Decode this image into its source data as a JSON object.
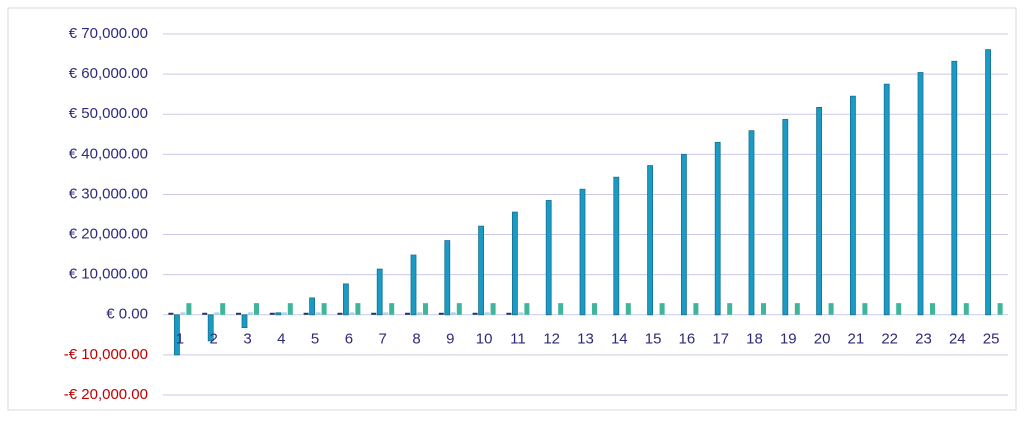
{
  "chart_data": {
    "type": "bar",
    "categories": [
      "1",
      "2",
      "3",
      "4",
      "5",
      "6",
      "7",
      "8",
      "9",
      "10",
      "11",
      "12",
      "13",
      "14",
      "15",
      "16",
      "17",
      "18",
      "19",
      "20",
      "21",
      "22",
      "23",
      "24",
      "25"
    ],
    "series": [
      {
        "color": "#1f3864",
        "values": [
          500,
          500,
          500,
          500,
          500,
          500,
          500,
          500,
          500,
          500,
          500,
          null,
          null,
          null,
          null,
          null,
          null,
          null,
          null,
          null,
          null,
          null,
          null,
          null,
          null
        ]
      },
      {
        "color": "#1a9bc6",
        "values": [
          -10000,
          -6500,
          -3200,
          500,
          4200,
          7700,
          11400,
          14900,
          18500,
          22100,
          25600,
          28500,
          31300,
          34300,
          37200,
          40000,
          43000,
          45900,
          48700,
          51700,
          54500,
          57500,
          60400,
          63200,
          66100
        ]
      },
      {
        "color": "#a9d4e4",
        "values": [
          600,
          600,
          600,
          600,
          600,
          600,
          600,
          600,
          600,
          600,
          600,
          null,
          null,
          null,
          null,
          null,
          null,
          null,
          null,
          null,
          null,
          null,
          null,
          null,
          null
        ]
      },
      {
        "color": "#3fb59c",
        "values": [
          2900,
          2900,
          2900,
          2900,
          2900,
          2900,
          2900,
          2900,
          2900,
          2900,
          2900,
          2900,
          2900,
          2900,
          2900,
          2900,
          2900,
          2900,
          2900,
          2900,
          2900,
          2900,
          2900,
          2900,
          2900
        ]
      }
    ],
    "ylim": [
      -20000,
      70000
    ],
    "yticks": [
      {
        "value": -20000,
        "label": "-€ 20,000.00"
      },
      {
        "value": -10000,
        "label": "-€ 10,000.00"
      },
      {
        "value": 0,
        "label": "€ 0.00"
      },
      {
        "value": 10000,
        "label": "€ 10,000.00"
      },
      {
        "value": 20000,
        "label": "€ 20,000.00"
      },
      {
        "value": 30000,
        "label": "€ 30,000.00"
      },
      {
        "value": 40000,
        "label": "€ 40,000.00"
      },
      {
        "value": 50000,
        "label": "€ 50,000.00"
      },
      {
        "value": 60000,
        "label": "€ 60,000.00"
      },
      {
        "value": 70000,
        "label": "€ 70,000.00"
      }
    ],
    "grid": true,
    "negative_label_color": "#c00000"
  }
}
